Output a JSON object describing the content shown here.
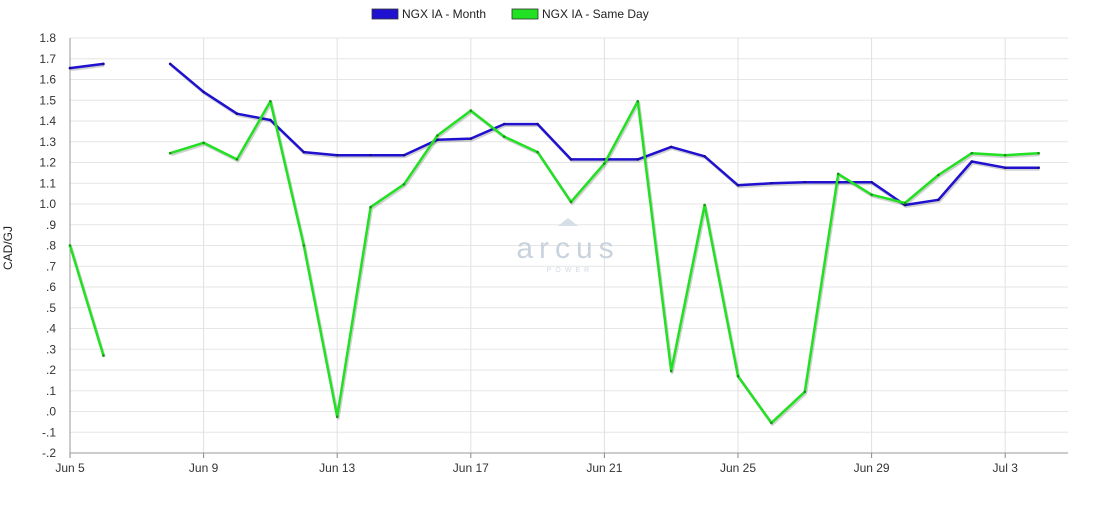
{
  "chart_data": {
    "type": "line",
    "ylabel": "CAD/GJ",
    "ylim": [
      -0.2,
      1.8
    ],
    "y_ticks": [
      {
        "value": 1.8,
        "label": "1.8"
      },
      {
        "value": 1.7,
        "label": "1.7"
      },
      {
        "value": 1.6,
        "label": "1.6"
      },
      {
        "value": 1.5,
        "label": "1.5"
      },
      {
        "value": 1.4,
        "label": "1.4"
      },
      {
        "value": 1.3,
        "label": "1.3"
      },
      {
        "value": 1.2,
        "label": "1.2"
      },
      {
        "value": 1.1,
        "label": "1.1"
      },
      {
        "value": 1.0,
        "label": "1.0"
      },
      {
        "value": 0.9,
        "label": ".9"
      },
      {
        "value": 0.8,
        "label": ".8"
      },
      {
        "value": 0.7,
        "label": ".7"
      },
      {
        "value": 0.6,
        "label": ".6"
      },
      {
        "value": 0.5,
        "label": ".5"
      },
      {
        "value": 0.4,
        "label": ".4"
      },
      {
        "value": 0.3,
        "label": ".3"
      },
      {
        "value": 0.2,
        "label": ".2"
      },
      {
        "value": 0.1,
        "label": ".1"
      },
      {
        "value": 0.0,
        "label": ".0"
      },
      {
        "value": -0.1,
        "label": "-.1"
      },
      {
        "value": -0.2,
        "label": "-.2"
      }
    ],
    "x_ticks": [
      {
        "date": "2023-06-05",
        "label": "Jun 5"
      },
      {
        "date": "2023-06-09",
        "label": "Jun 9"
      },
      {
        "date": "2023-06-13",
        "label": "Jun 13"
      },
      {
        "date": "2023-06-17",
        "label": "Jun 17"
      },
      {
        "date": "2023-06-21",
        "label": "Jun 21"
      },
      {
        "date": "2023-06-25",
        "label": "Jun 25"
      },
      {
        "date": "2023-06-29",
        "label": "Jun 29"
      },
      {
        "date": "2023-07-03",
        "label": "Jul 3"
      }
    ],
    "xlim": [
      "2023-06-05",
      "2023-07-05"
    ],
    "grid": true,
    "legend_position": "top-center",
    "series": [
      {
        "name": "NGX IA - Month",
        "color": "#2010d0",
        "points": [
          [
            "2023-06-05",
            1.655
          ],
          [
            "2023-06-06",
            1.675
          ],
          [
            "2023-06-07",
            null
          ],
          [
            "2023-06-08",
            1.675
          ],
          [
            "2023-06-09",
            1.54
          ],
          [
            "2023-06-10",
            1.435
          ],
          [
            "2023-06-11",
            1.405
          ],
          [
            "2023-06-12",
            1.25
          ],
          [
            "2023-06-13",
            1.235
          ],
          [
            "2023-06-14",
            1.235
          ],
          [
            "2023-06-15",
            1.235
          ],
          [
            "2023-06-16",
            1.31
          ],
          [
            "2023-06-17",
            1.315
          ],
          [
            "2023-06-18",
            1.385
          ],
          [
            "2023-06-19",
            1.385
          ],
          [
            "2023-06-20",
            1.215
          ],
          [
            "2023-06-21",
            1.215
          ],
          [
            "2023-06-22",
            1.215
          ],
          [
            "2023-06-23",
            1.275
          ],
          [
            "2023-06-24",
            1.23
          ],
          [
            "2023-06-25",
            1.09
          ],
          [
            "2023-06-26",
            1.1
          ],
          [
            "2023-06-27",
            1.105
          ],
          [
            "2023-06-28",
            1.105
          ],
          [
            "2023-06-29",
            1.105
          ],
          [
            "2023-06-30",
            0.995
          ],
          [
            "2023-07-01",
            1.02
          ],
          [
            "2023-07-02",
            1.205
          ],
          [
            "2023-07-03",
            1.175
          ],
          [
            "2023-07-04",
            1.175
          ]
        ]
      },
      {
        "name": "NGX IA - Same Day",
        "color": "#22e022",
        "points": [
          [
            "2023-06-05",
            0.8
          ],
          [
            "2023-06-06",
            0.27
          ],
          [
            "2023-06-07",
            null
          ],
          [
            "2023-06-08",
            1.245
          ],
          [
            "2023-06-09",
            1.295
          ],
          [
            "2023-06-10",
            1.215
          ],
          [
            "2023-06-11",
            1.495
          ],
          [
            "2023-06-12",
            0.8
          ],
          [
            "2023-06-13",
            -0.025
          ],
          [
            "2023-06-14",
            0.985
          ],
          [
            "2023-06-15",
            1.095
          ],
          [
            "2023-06-16",
            1.33
          ],
          [
            "2023-06-17",
            1.45
          ],
          [
            "2023-06-18",
            1.325
          ],
          [
            "2023-06-19",
            1.25
          ],
          [
            "2023-06-20",
            1.01
          ],
          [
            "2023-06-21",
            1.195
          ],
          [
            "2023-06-22",
            1.495
          ],
          [
            "2023-06-23",
            0.195
          ],
          [
            "2023-06-24",
            0.995
          ],
          [
            "2023-06-25",
            0.17
          ],
          [
            "2023-06-26",
            -0.055
          ],
          [
            "2023-06-27",
            0.095
          ],
          [
            "2023-06-28",
            1.145
          ],
          [
            "2023-06-29",
            1.045
          ],
          [
            "2023-06-30",
            1.005
          ],
          [
            "2023-07-01",
            1.14
          ],
          [
            "2023-07-02",
            1.245
          ],
          [
            "2023-07-03",
            1.235
          ],
          [
            "2023-07-04",
            1.245
          ]
        ]
      }
    ]
  },
  "watermark": {
    "brand": "arcus",
    "sub": "POWER"
  }
}
